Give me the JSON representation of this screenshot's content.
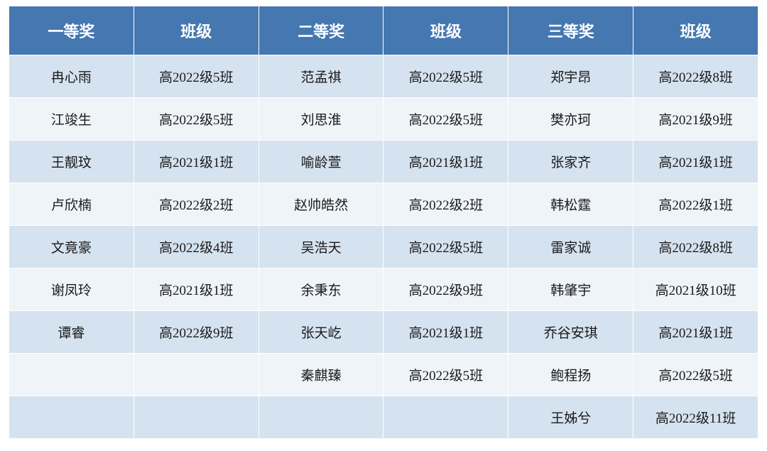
{
  "table": {
    "header_bg": "#4577b0",
    "header_text_color": "#ffffff",
    "row_odd_bg": "#d5e2ef",
    "row_even_bg": "#eff4f9",
    "border_color": "#ffffff",
    "header_fontsize": 22,
    "cell_fontsize": 19,
    "columns": [
      "一等奖",
      "班级",
      "二等奖",
      "班级",
      "三等奖",
      "班级"
    ],
    "rows": [
      [
        "冉心雨",
        "高2022级5班",
        "范孟祺",
        "高2022级5班",
        "郑宇昂",
        "高2022级8班"
      ],
      [
        "江竣生",
        "高2022级5班",
        "刘思淮",
        "高2022级5班",
        "樊亦珂",
        "高2021级9班"
      ],
      [
        "王靓玟",
        "高2021级1班",
        "喻龄萱",
        "高2021级1班",
        "张家齐",
        "高2021级1班"
      ],
      [
        "卢欣楠",
        "高2022级2班",
        "赵帅皓然",
        "高2022级2班",
        "韩松霆",
        "高2022级1班"
      ],
      [
        "文竟豪",
        "高2022级4班",
        "吴浩天",
        "高2022级5班",
        "雷家诚",
        "高2022级8班"
      ],
      [
        "谢凤玲",
        "高2021级1班",
        "余秉东",
        "高2022级9班",
        "韩肇宇",
        "高2021级10班"
      ],
      [
        "谭睿",
        "高2022级9班",
        "张天屹",
        "高2021级1班",
        "乔谷安琪",
        "高2021级1班"
      ],
      [
        "",
        "",
        "秦麒臻",
        "高2022级5班",
        "鲍程扬",
        "高2022级5班"
      ],
      [
        "",
        "",
        "",
        "",
        "王姊兮",
        "高2022级11班"
      ]
    ]
  }
}
